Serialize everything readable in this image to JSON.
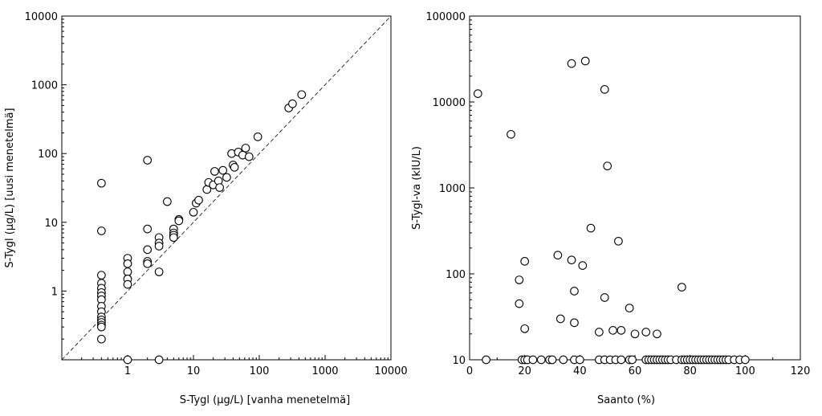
{
  "chart_data": [
    {
      "type": "scatter",
      "xscale": "log",
      "yscale": "log",
      "xlim": [
        0.1,
        10000
      ],
      "ylim": [
        0.1,
        10000
      ],
      "xlabel": "S-Tygl (μg/L)   [vanha menetelmä]",
      "ylabel": "S-Tygl (μg/L)   [uusi menetelmä]",
      "xticks": [
        "1",
        "10",
        "100",
        "1000",
        "10000"
      ],
      "yticks": [
        "1",
        "10",
        "100",
        "1000",
        "10000"
      ],
      "reference_line": "y = x (dashed)",
      "points": [
        [
          0.4,
          37
        ],
        [
          0.4,
          7.5
        ],
        [
          0.4,
          1.7
        ],
        [
          0.4,
          1.3
        ],
        [
          0.4,
          1.1
        ],
        [
          0.4,
          0.95
        ],
        [
          0.4,
          0.85
        ],
        [
          0.4,
          0.75
        ],
        [
          0.4,
          0.6
        ],
        [
          0.4,
          0.5
        ],
        [
          0.4,
          0.42
        ],
        [
          0.4,
          0.38
        ],
        [
          0.4,
          0.35
        ],
        [
          0.4,
          0.32
        ],
        [
          0.4,
          0.3
        ],
        [
          0.4,
          0.2
        ],
        [
          1,
          3
        ],
        [
          1,
          2.5
        ],
        [
          1,
          1.9
        ],
        [
          1,
          1.5
        ],
        [
          1,
          1.25
        ],
        [
          2,
          80
        ],
        [
          2,
          8
        ],
        [
          2,
          4
        ],
        [
          2,
          2.7
        ],
        [
          2,
          2.5
        ],
        [
          3,
          6
        ],
        [
          3,
          5
        ],
        [
          3,
          4.5
        ],
        [
          3,
          1.9
        ],
        [
          4,
          20
        ],
        [
          5,
          8
        ],
        [
          5,
          7
        ],
        [
          5,
          6.5
        ],
        [
          5,
          6
        ],
        [
          6,
          11
        ],
        [
          6,
          10.5
        ],
        [
          10,
          14
        ],
        [
          11,
          19
        ],
        [
          12,
          21
        ],
        [
          16,
          30
        ],
        [
          17,
          38
        ],
        [
          20,
          35
        ],
        [
          21,
          55
        ],
        [
          24,
          40
        ],
        [
          25,
          32
        ],
        [
          28,
          57
        ],
        [
          32,
          45
        ],
        [
          38,
          100
        ],
        [
          40,
          68
        ],
        [
          42,
          63
        ],
        [
          48,
          105
        ],
        [
          56,
          95
        ],
        [
          62,
          120
        ],
        [
          70,
          90
        ],
        [
          95,
          175
        ],
        [
          280,
          460
        ],
        [
          320,
          530
        ],
        [
          440,
          720
        ],
        [
          1,
          0.1
        ],
        [
          3,
          0.1
        ]
      ]
    },
    {
      "type": "scatter",
      "xscale": "linear",
      "yscale": "log",
      "xlim": [
        0,
        120
      ],
      "ylim": [
        10,
        100000
      ],
      "xlabel": "Saanto (%)",
      "ylabel": "S-Tygl-va (kIU/L)",
      "xticks": [
        "0",
        "20",
        "40",
        "60",
        "80",
        "100",
        "120"
      ],
      "yticks": [
        "10",
        "100",
        "1000",
        "10000",
        "100000"
      ],
      "points": [
        [
          3,
          12500
        ],
        [
          15,
          4200
        ],
        [
          37,
          28000
        ],
        [
          42,
          30000
        ],
        [
          49,
          14000
        ],
        [
          50,
          1800
        ],
        [
          44,
          340
        ],
        [
          54,
          240
        ],
        [
          32,
          165
        ],
        [
          37,
          145
        ],
        [
          41,
          125
        ],
        [
          20,
          140
        ],
        [
          18,
          85
        ],
        [
          18,
          45
        ],
        [
          20,
          23
        ],
        [
          38,
          63
        ],
        [
          33,
          30
        ],
        [
          38,
          27
        ],
        [
          49,
          53
        ],
        [
          47,
          21
        ],
        [
          52,
          22
        ],
        [
          55,
          22
        ],
        [
          58,
          40
        ],
        [
          60,
          20
        ],
        [
          64,
          21
        ],
        [
          68,
          20
        ],
        [
          77,
          70
        ],
        [
          6,
          10
        ],
        [
          19,
          10
        ],
        [
          20,
          10
        ],
        [
          21,
          10
        ],
        [
          23,
          10
        ],
        [
          26,
          10
        ],
        [
          29,
          10
        ],
        [
          30,
          10
        ],
        [
          34,
          10
        ],
        [
          38,
          10
        ],
        [
          40,
          10
        ],
        [
          47,
          10
        ],
        [
          49,
          10
        ],
        [
          51,
          10
        ],
        [
          53,
          10
        ],
        [
          55,
          10
        ],
        [
          58,
          10
        ],
        [
          59,
          10
        ],
        [
          64,
          10
        ],
        [
          65,
          10
        ],
        [
          66,
          10
        ],
        [
          67,
          10
        ],
        [
          68,
          10
        ],
        [
          69,
          10
        ],
        [
          70,
          10
        ],
        [
          71,
          10
        ],
        [
          72,
          10
        ],
        [
          73,
          10
        ],
        [
          75,
          10
        ],
        [
          77,
          10
        ],
        [
          78,
          10
        ],
        [
          79,
          10
        ],
        [
          80,
          10
        ],
        [
          81,
          10
        ],
        [
          82,
          10
        ],
        [
          83,
          10
        ],
        [
          84,
          10
        ],
        [
          85,
          10
        ],
        [
          86,
          10
        ],
        [
          87,
          10
        ],
        [
          88,
          10
        ],
        [
          89,
          10
        ],
        [
          90,
          10
        ],
        [
          91,
          10
        ],
        [
          92,
          10
        ],
        [
          93,
          10
        ],
        [
          94,
          10
        ],
        [
          96,
          10
        ],
        [
          98,
          10
        ],
        [
          100,
          10
        ]
      ]
    }
  ]
}
